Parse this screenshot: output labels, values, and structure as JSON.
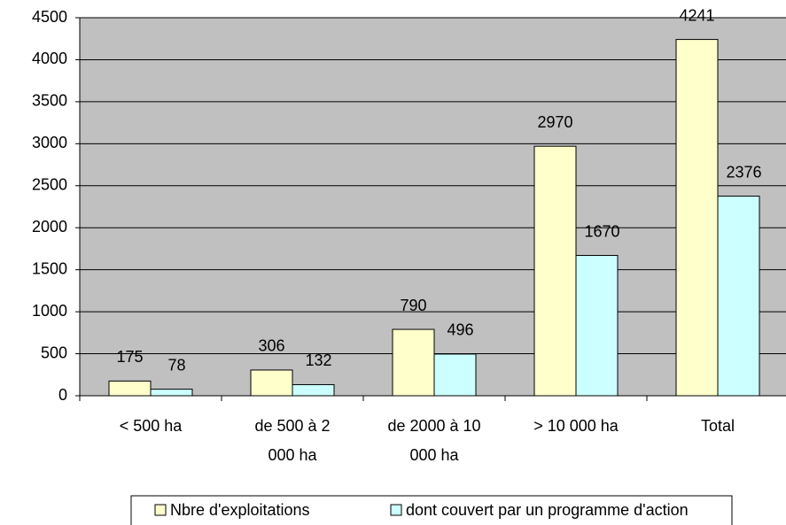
{
  "chart_data": {
    "type": "bar",
    "categories": [
      "< 500 ha",
      "de 500 à 2 000 ha",
      "de 2000 à 10 000 ha",
      "> 10 000 ha",
      "Total"
    ],
    "series": [
      {
        "name": "Nbre d'exploitations",
        "color": "#ffffcc",
        "values": [
          175,
          306,
          790,
          2970,
          4241
        ]
      },
      {
        "name": "dont couvert par un programme d'action",
        "color": "#ccffff",
        "values": [
          78,
          132,
          496,
          1670,
          2376
        ]
      }
    ],
    "ylim": [
      0,
      4500
    ],
    "yticks": [
      0,
      500,
      1000,
      1500,
      2000,
      2500,
      3000,
      3500,
      4000,
      4500
    ],
    "grid": true,
    "plot_background": "#c0c0c0",
    "legend": "bottom"
  }
}
